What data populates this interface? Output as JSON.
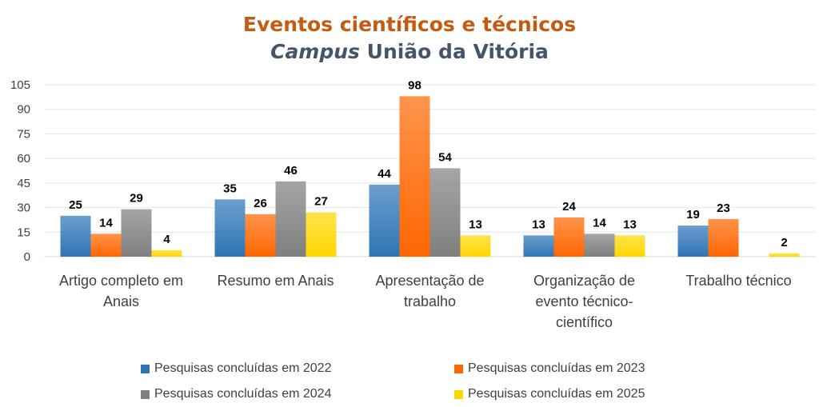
{
  "chart_data": {
    "type": "bar",
    "title": "Eventos científicos e técnicos",
    "subtitle_italic": "Campus",
    "subtitle_rest": " União da Vitória",
    "categories": [
      [
        "Artigo completo em",
        "Anais"
      ],
      [
        "Resumo em Anais"
      ],
      [
        "Apresentação de",
        "trabalho"
      ],
      [
        "Organização de",
        "evento técnico-",
        "científico"
      ],
      [
        "Trabalho técnico"
      ]
    ],
    "series": [
      {
        "name": "Pesquisas concluídas em 2022",
        "color": "#2e75b6",
        "values": [
          25,
          35,
          44,
          13,
          19
        ]
      },
      {
        "name": "Pesquisas concluídas em 2023",
        "color": "#ff6600",
        "values": [
          14,
          26,
          98,
          24,
          23
        ]
      },
      {
        "name": "Pesquisas concluídas em 2024",
        "color": "#7f7f7f",
        "values": [
          29,
          46,
          54,
          14,
          null
        ]
      },
      {
        "name": "Pesquisas concluídas em 2025",
        "color": "#ffd700",
        "values": [
          4,
          27,
          13,
          13,
          2
        ]
      }
    ],
    "ylim": [
      0,
      105
    ],
    "yticks": [
      0,
      15,
      30,
      45,
      60,
      75,
      90,
      105
    ],
    "grid": true,
    "legend": "bottom"
  }
}
